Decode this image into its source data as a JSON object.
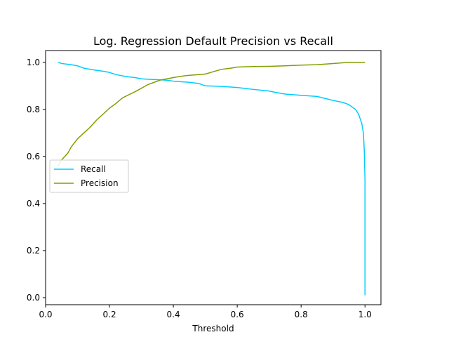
{
  "chart_data": {
    "type": "line",
    "title": "Log. Regression Default Precision vs Recall",
    "xlabel": "Threshold",
    "ylabel": "",
    "xlim": [
      0.0,
      1.05
    ],
    "ylim": [
      -0.03,
      1.05
    ],
    "xticks": [
      0.0,
      0.2,
      0.4,
      0.6,
      0.8,
      1.0
    ],
    "xtick_labels": [
      "0.0",
      "0.2",
      "0.4",
      "0.6",
      "0.8",
      "1.0"
    ],
    "yticks": [
      0.0,
      0.2,
      0.4,
      0.6,
      0.8,
      1.0
    ],
    "ytick_labels": [
      "0.0",
      "0.2",
      "0.4",
      "0.6",
      "0.8",
      "1.0"
    ],
    "grid": false,
    "legend_position": "center-left",
    "series": [
      {
        "name": "Recall",
        "color": "#00ccff",
        "x": [
          0.04,
          0.05,
          0.08,
          0.1,
          0.12,
          0.15,
          0.18,
          0.2,
          0.22,
          0.25,
          0.28,
          0.3,
          0.32,
          0.35,
          0.38,
          0.4,
          0.42,
          0.45,
          0.48,
          0.5,
          0.55,
          0.6,
          0.65,
          0.7,
          0.72,
          0.75,
          0.8,
          0.85,
          0.88,
          0.9,
          0.93,
          0.95,
          0.97,
          0.98,
          0.99,
          0.995,
          0.998,
          1.0,
          1.0,
          1.0,
          1.0
        ],
        "values": [
          1.0,
          0.995,
          0.99,
          0.985,
          0.975,
          0.968,
          0.962,
          0.957,
          0.948,
          0.94,
          0.935,
          0.93,
          0.928,
          0.926,
          0.924,
          0.92,
          0.918,
          0.915,
          0.91,
          0.9,
          0.898,
          0.893,
          0.885,
          0.878,
          0.872,
          0.865,
          0.86,
          0.855,
          0.845,
          0.838,
          0.83,
          0.82,
          0.8,
          0.78,
          0.74,
          0.7,
          0.62,
          0.5,
          0.3,
          0.1,
          0.01
        ]
      },
      {
        "name": "Precision",
        "color": "#7f9f00",
        "x": [
          0.04,
          0.05,
          0.06,
          0.07,
          0.08,
          0.1,
          0.12,
          0.14,
          0.16,
          0.18,
          0.2,
          0.22,
          0.24,
          0.26,
          0.28,
          0.3,
          0.32,
          0.34,
          0.36,
          0.38,
          0.4,
          0.42,
          0.45,
          0.48,
          0.5,
          0.52,
          0.55,
          0.58,
          0.6,
          0.65,
          0.7,
          0.75,
          0.8,
          0.85,
          0.9,
          0.95,
          1.0
        ],
        "values": [
          0.56,
          0.585,
          0.6,
          0.615,
          0.64,
          0.675,
          0.7,
          0.725,
          0.755,
          0.78,
          0.805,
          0.825,
          0.848,
          0.862,
          0.875,
          0.89,
          0.905,
          0.915,
          0.925,
          0.93,
          0.935,
          0.94,
          0.945,
          0.948,
          0.95,
          0.958,
          0.97,
          0.975,
          0.98,
          0.982,
          0.983,
          0.985,
          0.988,
          0.99,
          0.995,
          1.0,
          1.0
        ]
      }
    ]
  }
}
